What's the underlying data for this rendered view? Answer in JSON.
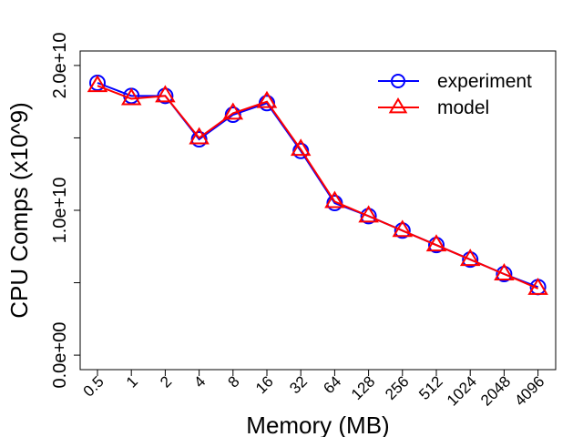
{
  "chart_data": {
    "type": "line",
    "xlabel": "Memory (MB)",
    "ylabel": "CPU Comps (x10^9)",
    "categories": [
      "0.5",
      "1",
      "2",
      "4",
      "8",
      "16",
      "32",
      "64",
      "128",
      "256",
      "512",
      "1024",
      "2048",
      "4096"
    ],
    "ylim": [
      -1000000000.0,
      21000000000.0
    ],
    "y_ticks": [
      0,
      5000000000.0,
      10000000000.0,
      15000000000.0,
      20000000000.0
    ],
    "y_tick_labels": [
      "0.0e+00",
      "",
      "1.0e+10",
      "",
      "2.0e+10"
    ],
    "legend_position": "top-right",
    "grid": false,
    "series": [
      {
        "name": "experiment",
        "color": "#0000ff",
        "marker": "circle",
        "values": [
          18800000000.0,
          17900000000.0,
          17900000000.0,
          14900000000.0,
          16600000000.0,
          17400000000.0,
          14100000000.0,
          10500000000.0,
          9600000000.0,
          8600000000.0,
          7600000000.0,
          6600000000.0,
          5600000000.0,
          4700000000.0
        ]
      },
      {
        "name": "model",
        "color": "#ff0000",
        "marker": "triangle",
        "values": [
          18600000000.0,
          17700000000.0,
          17900000000.0,
          15000000000.0,
          16700000000.0,
          17500000000.0,
          14200000000.0,
          10600000000.0,
          9600000000.0,
          8600000000.0,
          7600000000.0,
          6600000000.0,
          5600000000.0,
          4600000000.0
        ]
      }
    ]
  }
}
